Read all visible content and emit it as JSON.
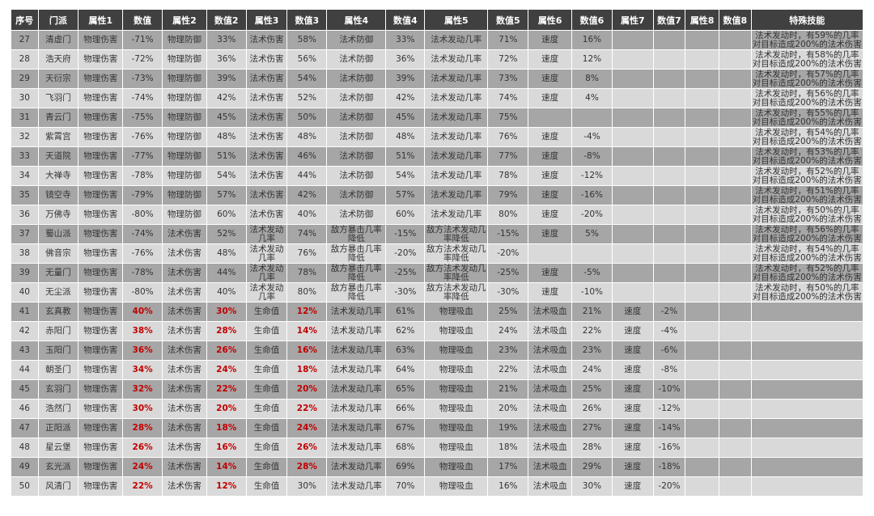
{
  "headers": [
    "序号",
    "门派",
    "属性1",
    "数值",
    "属性2",
    "数值2",
    "属性3",
    "数值3",
    "属性4",
    "数值4",
    "属性5",
    "数值5",
    "属性6",
    "数值6",
    "属性7",
    "数值7",
    "属性8",
    "数值8",
    "特殊技能"
  ],
  "colors": {
    "header_bg": "#404040",
    "row_dark": "#a6a6a6",
    "row_light": "#d9d9d9",
    "highlight": "#c00000"
  },
  "rows": [
    {
      "no": "27",
      "sect": "清虚门",
      "cells": [
        "物理伤害",
        "-71%",
        "物理防御",
        "33%",
        "法术伤害",
        "58%",
        "法术防御",
        "33%",
        "法术发动几率",
        "71%",
        "速度",
        "16%",
        "",
        "",
        "",
        ""
      ],
      "skill": [
        "法术发动时，有59%的几率",
        "对目标造成200%的法术伤害"
      ],
      "red": []
    },
    {
      "no": "28",
      "sect": "浩天府",
      "cells": [
        "物理伤害",
        "-72%",
        "物理防御",
        "36%",
        "法术伤害",
        "56%",
        "法术防御",
        "36%",
        "法术发动几率",
        "72%",
        "速度",
        "12%",
        "",
        "",
        "",
        ""
      ],
      "skill": [
        "法术发动时，有58%的几率",
        "对目标造成200%的法术伤害"
      ],
      "red": []
    },
    {
      "no": "29",
      "sect": "天衍宗",
      "cells": [
        "物理伤害",
        "-73%",
        "物理防御",
        "39%",
        "法术伤害",
        "54%",
        "法术防御",
        "39%",
        "法术发动几率",
        "73%",
        "速度",
        "8%",
        "",
        "",
        "",
        ""
      ],
      "skill": [
        "法术发动时，有57%的几率",
        "对目标造成200%的法术伤害"
      ],
      "red": []
    },
    {
      "no": "30",
      "sect": "飞羽门",
      "cells": [
        "物理伤害",
        "-74%",
        "物理防御",
        "42%",
        "法术伤害",
        "52%",
        "法术防御",
        "42%",
        "法术发动几率",
        "74%",
        "速度",
        "4%",
        "",
        "",
        "",
        ""
      ],
      "skill": [
        "法术发动时，有56%的几率",
        "对目标造成200%的法术伤害"
      ],
      "red": []
    },
    {
      "no": "31",
      "sect": "青云门",
      "cells": [
        "物理伤害",
        "-75%",
        "物理防御",
        "45%",
        "法术伤害",
        "50%",
        "法术防御",
        "45%",
        "法术发动几率",
        "75%",
        "",
        "",
        "",
        "",
        "",
        ""
      ],
      "skill": [
        "法术发动时，有55%的几率",
        "对目标造成200%的法术伤害"
      ],
      "red": []
    },
    {
      "no": "32",
      "sect": "紫霄宫",
      "cells": [
        "物理伤害",
        "-76%",
        "物理防御",
        "48%",
        "法术伤害",
        "48%",
        "法术防御",
        "48%",
        "法术发动几率",
        "76%",
        "速度",
        "-4%",
        "",
        "",
        "",
        ""
      ],
      "skill": [
        "法术发动时，有54%的几率",
        "对目标造成200%的法术伤害"
      ],
      "red": []
    },
    {
      "no": "33",
      "sect": "天道院",
      "cells": [
        "物理伤害",
        "-77%",
        "物理防御",
        "51%",
        "法术伤害",
        "46%",
        "法术防御",
        "51%",
        "法术发动几率",
        "77%",
        "速度",
        "-8%",
        "",
        "",
        "",
        ""
      ],
      "skill": [
        "法术发动时，有53%的几率",
        "对目标造成200%的法术伤害"
      ],
      "red": []
    },
    {
      "no": "34",
      "sect": "大禅寺",
      "cells": [
        "物理伤害",
        "-78%",
        "物理防御",
        "54%",
        "法术伤害",
        "44%",
        "法术防御",
        "54%",
        "法术发动几率",
        "78%",
        "速度",
        "-12%",
        "",
        "",
        "",
        ""
      ],
      "skill": [
        "法术发动时，有52%的几率",
        "对目标造成200%的法术伤害"
      ],
      "red": []
    },
    {
      "no": "35",
      "sect": "镜空寺",
      "cells": [
        "物理伤害",
        "-79%",
        "物理防御",
        "57%",
        "法术伤害",
        "42%",
        "法术防御",
        "57%",
        "法术发动几率",
        "79%",
        "速度",
        "-16%",
        "",
        "",
        "",
        ""
      ],
      "skill": [
        "法术发动时，有51%的几率",
        "对目标造成200%的法术伤害"
      ],
      "red": []
    },
    {
      "no": "36",
      "sect": "万佛寺",
      "cells": [
        "物理伤害",
        "-80%",
        "物理防御",
        "60%",
        "法术伤害",
        "40%",
        "法术防御",
        "60%",
        "法术发动几率",
        "80%",
        "速度",
        "-20%",
        "",
        "",
        "",
        ""
      ],
      "skill": [
        "法术发动时，有50%的几率",
        "对目标造成200%的法术伤害"
      ],
      "red": []
    },
    {
      "no": "37",
      "sect": "蜀山派",
      "cells": [
        "物理伤害",
        "-74%",
        "法术伤害",
        "52%",
        "法术发动几率",
        "74%",
        "敌方暴击几率降低",
        "-15%",
        "敌方法术发动几率降低",
        "-15%",
        "速度",
        "5%",
        "",
        "",
        "",
        ""
      ],
      "skill": [
        "法术发动时，有56%的几率",
        "对目标造成200%的法术伤害"
      ],
      "red": []
    },
    {
      "no": "38",
      "sect": "佛音宗",
      "cells": [
        "物理伤害",
        "-76%",
        "法术伤害",
        "48%",
        "法术发动几率",
        "76%",
        "敌方暴击几率降低",
        "-20%",
        "敌方法术发动几率降低",
        "-20%",
        "",
        "",
        "",
        "",
        "",
        ""
      ],
      "skill": [
        "法术发动时，有54%的几率",
        "对目标造成200%的法术伤害"
      ],
      "red": []
    },
    {
      "no": "39",
      "sect": "无量门",
      "cells": [
        "物理伤害",
        "-78%",
        "法术伤害",
        "44%",
        "法术发动几率",
        "78%",
        "敌方暴击几率降低",
        "-25%",
        "敌方法术发动几率降低",
        "-25%",
        "速度",
        "-5%",
        "",
        "",
        "",
        ""
      ],
      "skill": [
        "法术发动时，有52%的几率",
        "对目标造成200%的法术伤害"
      ],
      "red": []
    },
    {
      "no": "40",
      "sect": "无尘派",
      "cells": [
        "物理伤害",
        "-80%",
        "法术伤害",
        "40%",
        "法术发动几率",
        "80%",
        "敌方暴击几率降低",
        "-30%",
        "敌方法术发动几率降低",
        "-30%",
        "速度",
        "-10%",
        "",
        "",
        "",
        ""
      ],
      "skill": [
        "法术发动时，有50%的几率",
        "对目标造成200%的法术伤害"
      ],
      "red": []
    },
    {
      "no": "41",
      "sect": "玄真教",
      "cells": [
        "物理伤害",
        "40%",
        "法术伤害",
        "30%",
        "生命值",
        "12%",
        "法术发动几率",
        "61%",
        "物理吸血",
        "25%",
        "法术吸血",
        "21%",
        "速度",
        "-2%",
        "",
        ""
      ],
      "skill": [],
      "red": [
        1,
        3,
        5
      ]
    },
    {
      "no": "42",
      "sect": "赤阳门",
      "cells": [
        "物理伤害",
        "38%",
        "法术伤害",
        "28%",
        "生命值",
        "14%",
        "法术发动几率",
        "62%",
        "物理吸血",
        "24%",
        "法术吸血",
        "22%",
        "速度",
        "-4%",
        "",
        ""
      ],
      "skill": [],
      "red": [
        1,
        3,
        5
      ]
    },
    {
      "no": "43",
      "sect": "玉阳门",
      "cells": [
        "物理伤害",
        "36%",
        "法术伤害",
        "26%",
        "生命值",
        "16%",
        "法术发动几率",
        "63%",
        "物理吸血",
        "23%",
        "法术吸血",
        "23%",
        "速度",
        "-6%",
        "",
        ""
      ],
      "skill": [],
      "red": [
        1,
        3,
        5
      ]
    },
    {
      "no": "44",
      "sect": "朝圣门",
      "cells": [
        "物理伤害",
        "34%",
        "法术伤害",
        "24%",
        "生命值",
        "18%",
        "法术发动几率",
        "64%",
        "物理吸血",
        "22%",
        "法术吸血",
        "24%",
        "速度",
        "-8%",
        "",
        ""
      ],
      "skill": [],
      "red": [
        1,
        3,
        5
      ]
    },
    {
      "no": "45",
      "sect": "玄羽门",
      "cells": [
        "物理伤害",
        "32%",
        "法术伤害",
        "22%",
        "生命值",
        "20%",
        "法术发动几率",
        "65%",
        "物理吸血",
        "21%",
        "法术吸血",
        "25%",
        "速度",
        "-10%",
        "",
        ""
      ],
      "skill": [],
      "red": [
        1,
        3,
        5
      ]
    },
    {
      "no": "46",
      "sect": "浩然门",
      "cells": [
        "物理伤害",
        "30%",
        "法术伤害",
        "20%",
        "生命值",
        "22%",
        "法术发动几率",
        "66%",
        "物理吸血",
        "20%",
        "法术吸血",
        "26%",
        "速度",
        "-12%",
        "",
        ""
      ],
      "skill": [],
      "red": [
        1,
        3,
        5
      ]
    },
    {
      "no": "47",
      "sect": "正阳派",
      "cells": [
        "物理伤害",
        "28%",
        "法术伤害",
        "18%",
        "生命值",
        "24%",
        "法术发动几率",
        "67%",
        "物理吸血",
        "19%",
        "法术吸血",
        "27%",
        "速度",
        "-14%",
        "",
        ""
      ],
      "skill": [],
      "red": [
        1,
        3,
        5
      ]
    },
    {
      "no": "48",
      "sect": "星云堡",
      "cells": [
        "物理伤害",
        "26%",
        "法术伤害",
        "16%",
        "生命值",
        "26%",
        "法术发动几率",
        "68%",
        "物理吸血",
        "18%",
        "法术吸血",
        "28%",
        "速度",
        "-16%",
        "",
        ""
      ],
      "skill": [],
      "red": [
        1,
        3,
        5
      ]
    },
    {
      "no": "49",
      "sect": "玄光派",
      "cells": [
        "物理伤害",
        "24%",
        "法术伤害",
        "14%",
        "生命值",
        "28%",
        "法术发动几率",
        "69%",
        "物理吸血",
        "17%",
        "法术吸血",
        "29%",
        "速度",
        "-18%",
        "",
        ""
      ],
      "skill": [],
      "red": [
        1,
        3,
        5
      ]
    },
    {
      "no": "50",
      "sect": "风清门",
      "cells": [
        "物理伤害",
        "22%",
        "法术伤害",
        "12%",
        "生命值",
        "30%",
        "法术发动几率",
        "70%",
        "物理吸血",
        "16%",
        "法术吸血",
        "30%",
        "速度",
        "-20%",
        "",
        ""
      ],
      "skill": [],
      "red": [
        1,
        3
      ]
    }
  ]
}
